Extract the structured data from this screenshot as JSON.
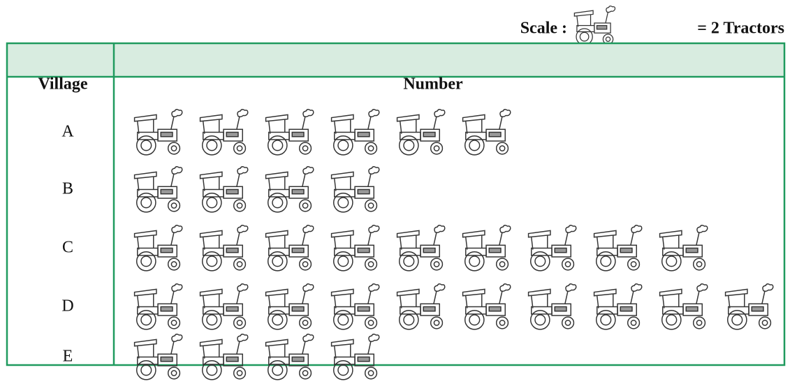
{
  "chart_data": {
    "type": "pictograph",
    "scale_label_prefix": "Scale :",
    "scale_label_suffix": "= 2 Tractors",
    "column_headers": [
      "Village",
      "Number"
    ],
    "categories": [
      "A",
      "B",
      "C",
      "D",
      "E"
    ],
    "values": [
      6,
      4,
      9,
      10,
      4
    ]
  }
}
